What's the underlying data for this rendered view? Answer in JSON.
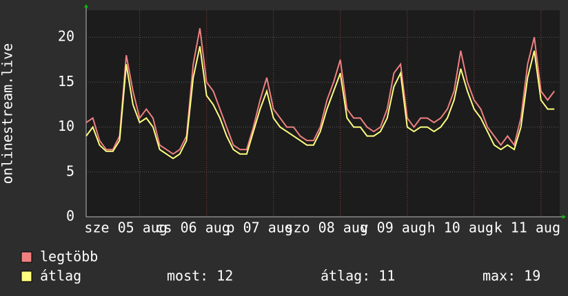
{
  "chart_data": {
    "type": "line",
    "y_label": "onlinestream.live",
    "x": [
      0,
      0.1,
      0.2,
      0.3,
      0.4,
      0.5,
      0.6,
      0.7,
      0.8,
      0.9,
      1,
      1.1,
      1.2,
      1.3,
      1.4,
      1.5,
      1.6,
      1.7,
      1.8,
      1.9,
      2,
      2.1,
      2.2,
      2.3,
      2.4,
      2.5,
      2.6,
      2.7,
      2.8,
      2.9,
      3,
      3.1,
      3.2,
      3.3,
      3.4,
      3.5,
      3.6,
      3.7,
      3.8,
      3.9,
      4,
      4.1,
      4.2,
      4.3,
      4.4,
      4.5,
      4.6,
      4.7,
      4.8,
      4.9,
      5,
      5.1,
      5.2,
      5.3,
      5.4,
      5.5,
      5.6,
      5.7,
      5.8,
      5.9,
      6,
      6.1,
      6.2,
      6.3,
      6.4,
      6.5,
      6.6,
      6.7,
      6.8,
      6.9,
      7
    ],
    "series": [
      {
        "name": "legtöbb",
        "color": "#f08080",
        "values": [
          10.5,
          11,
          8.5,
          7.5,
          7.5,
          9,
          18,
          14,
          11,
          12,
          11,
          8,
          7.5,
          7,
          7.5,
          9,
          17,
          21,
          15,
          14,
          12,
          10,
          8,
          7.5,
          7.5,
          10,
          13,
          15.5,
          12,
          11,
          10,
          10,
          9,
          8.5,
          8.5,
          10,
          13,
          15,
          17.5,
          12,
          11,
          11,
          10,
          9.5,
          10,
          12,
          16,
          17,
          11,
          10,
          11,
          11,
          10.5,
          11,
          12,
          14,
          18.5,
          15,
          13,
          12,
          10,
          9,
          8,
          9,
          8,
          11,
          17,
          20,
          14,
          13,
          14
        ]
      },
      {
        "name": "átlag",
        "color": "#ffff80",
        "values": [
          9,
          10,
          8,
          7.3,
          7.3,
          8.5,
          17,
          12.5,
          10.5,
          11,
          10,
          7.5,
          7,
          6.5,
          7,
          8.5,
          15.5,
          19,
          13.5,
          12.5,
          11,
          9,
          7.5,
          7,
          7,
          9.5,
          12,
          14,
          11,
          10,
          9.5,
          9,
          8.5,
          8,
          8,
          9.5,
          12,
          14,
          16,
          11,
          10,
          10,
          9,
          9,
          9.5,
          11,
          14.5,
          16,
          10,
          9.5,
          10,
          10,
          9.5,
          10,
          11,
          13,
          16.5,
          14,
          12,
          11,
          9.5,
          8,
          7.5,
          8,
          7.5,
          10,
          15.5,
          18.5,
          13,
          12,
          12
        ]
      }
    ],
    "stats": [
      {
        "label": "most:",
        "value": 12
      },
      {
        "label": "átlag:",
        "value": 11
      },
      {
        "label": "max:",
        "value": 19
      }
    ],
    "xlim": [
      0,
      7.08
    ],
    "ylim": [
      0,
      23
    ],
    "yticks": [
      0,
      5,
      10,
      15,
      20
    ],
    "xticks": [
      {
        "value": 0.8,
        "label": "sze 05 aug"
      },
      {
        "value": 1.8,
        "label": "cs 06 aug"
      },
      {
        "value": 2.8,
        "label": "p 07 aug"
      },
      {
        "value": 3.8,
        "label": "szo 08 aug"
      },
      {
        "value": 4.8,
        "label": "v 09 aug"
      },
      {
        "value": 5.8,
        "label": "h 10 aug"
      },
      {
        "value": 6.8,
        "label": "k 11 aug"
      }
    ],
    "grid": true
  }
}
